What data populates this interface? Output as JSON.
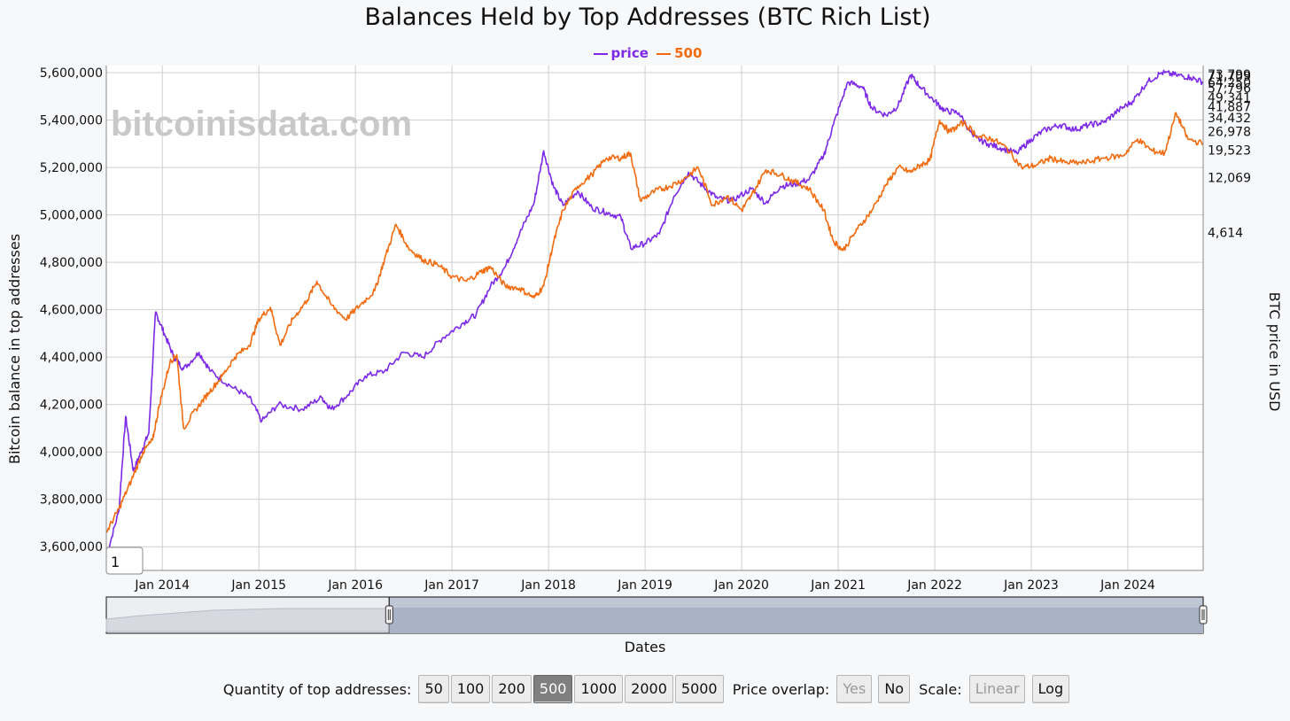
{
  "watermark": "bitcoinisdata.com",
  "chart_data": {
    "type": "line",
    "title": "Balances Held by Top Addresses (BTC Rich List)",
    "ylabel": "Bitcoin balance in top addresses",
    "y2label": "BTC price in USD",
    "xlabel": "Dates",
    "ylim": [
      3500000,
      5630000
    ],
    "y_ticks": [
      "3,600,000",
      "3,800,000",
      "4,000,000",
      "4,200,000",
      "4,400,000",
      "4,600,000",
      "4,800,000",
      "5,000,000",
      "5,200,000",
      "5,400,000",
      "5,600,000"
    ],
    "x_ticks": [
      "Jan 2014",
      "Jan 2015",
      "Jan 2016",
      "Jan 2017",
      "Jan 2018",
      "Jan 2019",
      "Jan 2020",
      "Jan 2021",
      "Jan 2022",
      "Jan 2023",
      "Jan 2024"
    ],
    "y2_ticks": [
      "73,799",
      "71,709",
      "64,250",
      "57,796",
      "49,341",
      "41,887",
      "34,432",
      "26,978",
      "19,523",
      "12,069",
      "4,614"
    ],
    "y2_tick_values": [
      73799,
      71709,
      64250,
      57796,
      49341,
      41887,
      34432,
      26978,
      19523,
      12069,
      4614
    ],
    "range_start_label": "1",
    "legend_position": "top-center",
    "grid": true,
    "series": [
      {
        "name": "price",
        "color": "#7d2ae8",
        "points": [
          [
            2013.42,
            3560000
          ],
          [
            2013.55,
            3750000
          ],
          [
            2013.62,
            4150000
          ],
          [
            2013.7,
            3920000
          ],
          [
            2013.78,
            4000000
          ],
          [
            2013.86,
            4080000
          ],
          [
            2013.93,
            4590000
          ],
          [
            2014.02,
            4500000
          ],
          [
            2014.12,
            4400000
          ],
          [
            2014.22,
            4350000
          ],
          [
            2014.38,
            4420000
          ],
          [
            2014.5,
            4340000
          ],
          [
            2014.7,
            4280000
          ],
          [
            2014.9,
            4230000
          ],
          [
            2015.03,
            4130000
          ],
          [
            2015.2,
            4200000
          ],
          [
            2015.45,
            4180000
          ],
          [
            2015.65,
            4230000
          ],
          [
            2015.75,
            4180000
          ],
          [
            2015.92,
            4240000
          ],
          [
            2016.1,
            4320000
          ],
          [
            2016.3,
            4340000
          ],
          [
            2016.5,
            4420000
          ],
          [
            2016.7,
            4400000
          ],
          [
            2016.9,
            4480000
          ],
          [
            2017.1,
            4540000
          ],
          [
            2017.25,
            4580000
          ],
          [
            2017.4,
            4700000
          ],
          [
            2017.55,
            4780000
          ],
          [
            2017.7,
            4920000
          ],
          [
            2017.85,
            5050000
          ],
          [
            2017.95,
            5270000
          ],
          [
            2018.05,
            5120000
          ],
          [
            2018.15,
            5040000
          ],
          [
            2018.3,
            5100000
          ],
          [
            2018.45,
            5030000
          ],
          [
            2018.6,
            5010000
          ],
          [
            2018.75,
            4990000
          ],
          [
            2018.85,
            4860000
          ],
          [
            2019.0,
            4880000
          ],
          [
            2019.15,
            4920000
          ],
          [
            2019.3,
            5080000
          ],
          [
            2019.45,
            5180000
          ],
          [
            2019.6,
            5120000
          ],
          [
            2019.75,
            5070000
          ],
          [
            2019.9,
            5060000
          ],
          [
            2020.1,
            5110000
          ],
          [
            2020.25,
            5050000
          ],
          [
            2020.4,
            5120000
          ],
          [
            2020.55,
            5130000
          ],
          [
            2020.7,
            5150000
          ],
          [
            2020.85,
            5250000
          ],
          [
            2020.95,
            5380000
          ],
          [
            2021.1,
            5560000
          ],
          [
            2021.25,
            5540000
          ],
          [
            2021.35,
            5450000
          ],
          [
            2021.5,
            5420000
          ],
          [
            2021.62,
            5460000
          ],
          [
            2021.75,
            5590000
          ],
          [
            2021.85,
            5540000
          ],
          [
            2022.0,
            5480000
          ],
          [
            2022.1,
            5440000
          ],
          [
            2022.25,
            5430000
          ],
          [
            2022.4,
            5330000
          ],
          [
            2022.55,
            5300000
          ],
          [
            2022.7,
            5280000
          ],
          [
            2022.85,
            5260000
          ],
          [
            2023.0,
            5320000
          ],
          [
            2023.15,
            5360000
          ],
          [
            2023.3,
            5380000
          ],
          [
            2023.45,
            5360000
          ],
          [
            2023.6,
            5380000
          ],
          [
            2023.75,
            5390000
          ],
          [
            2023.9,
            5440000
          ],
          [
            2024.05,
            5480000
          ],
          [
            2024.2,
            5560000
          ],
          [
            2024.35,
            5600000
          ],
          [
            2024.5,
            5590000
          ],
          [
            2024.65,
            5580000
          ],
          [
            2024.78,
            5560000
          ]
        ]
      },
      {
        "name": "500",
        "color": "#f26b0f",
        "points": [
          [
            2013.42,
            3660000
          ],
          [
            2013.55,
            3760000
          ],
          [
            2013.68,
            3880000
          ],
          [
            2013.8,
            4000000
          ],
          [
            2013.9,
            4050000
          ],
          [
            2013.97,
            4200000
          ],
          [
            2014.08,
            4380000
          ],
          [
            2014.15,
            4410000
          ],
          [
            2014.22,
            4100000
          ],
          [
            2014.35,
            4180000
          ],
          [
            2014.48,
            4250000
          ],
          [
            2014.62,
            4320000
          ],
          [
            2014.75,
            4400000
          ],
          [
            2014.9,
            4450000
          ],
          [
            2015.0,
            4560000
          ],
          [
            2015.12,
            4610000
          ],
          [
            2015.22,
            4450000
          ],
          [
            2015.35,
            4560000
          ],
          [
            2015.5,
            4640000
          ],
          [
            2015.6,
            4720000
          ],
          [
            2015.75,
            4620000
          ],
          [
            2015.9,
            4560000
          ],
          [
            2016.05,
            4620000
          ],
          [
            2016.2,
            4680000
          ],
          [
            2016.3,
            4810000
          ],
          [
            2016.42,
            4960000
          ],
          [
            2016.55,
            4860000
          ],
          [
            2016.7,
            4810000
          ],
          [
            2016.85,
            4790000
          ],
          [
            2017.0,
            4740000
          ],
          [
            2017.15,
            4720000
          ],
          [
            2017.3,
            4760000
          ],
          [
            2017.4,
            4780000
          ],
          [
            2017.55,
            4700000
          ],
          [
            2017.7,
            4690000
          ],
          [
            2017.85,
            4650000
          ],
          [
            2017.95,
            4700000
          ],
          [
            2018.05,
            4880000
          ],
          [
            2018.15,
            5020000
          ],
          [
            2018.3,
            5120000
          ],
          [
            2018.45,
            5170000
          ],
          [
            2018.6,
            5240000
          ],
          [
            2018.75,
            5240000
          ],
          [
            2018.85,
            5260000
          ],
          [
            2018.95,
            5060000
          ],
          [
            2019.1,
            5100000
          ],
          [
            2019.25,
            5120000
          ],
          [
            2019.4,
            5150000
          ],
          [
            2019.55,
            5200000
          ],
          [
            2019.7,
            5040000
          ],
          [
            2019.85,
            5080000
          ],
          [
            2020.0,
            5020000
          ],
          [
            2020.1,
            5080000
          ],
          [
            2020.25,
            5190000
          ],
          [
            2020.4,
            5170000
          ],
          [
            2020.55,
            5140000
          ],
          [
            2020.7,
            5110000
          ],
          [
            2020.85,
            5020000
          ],
          [
            2020.95,
            4890000
          ],
          [
            2021.05,
            4850000
          ],
          [
            2021.2,
            4940000
          ],
          [
            2021.35,
            5020000
          ],
          [
            2021.5,
            5130000
          ],
          [
            2021.62,
            5200000
          ],
          [
            2021.75,
            5180000
          ],
          [
            2021.85,
            5210000
          ],
          [
            2021.95,
            5230000
          ],
          [
            2022.05,
            5400000
          ],
          [
            2022.15,
            5350000
          ],
          [
            2022.3,
            5390000
          ],
          [
            2022.45,
            5330000
          ],
          [
            2022.6,
            5320000
          ],
          [
            2022.75,
            5280000
          ],
          [
            2022.9,
            5200000
          ],
          [
            2023.05,
            5210000
          ],
          [
            2023.2,
            5240000
          ],
          [
            2023.35,
            5220000
          ],
          [
            2023.55,
            5220000
          ],
          [
            2023.75,
            5240000
          ],
          [
            2023.95,
            5250000
          ],
          [
            2024.1,
            5320000
          ],
          [
            2024.25,
            5270000
          ],
          [
            2024.38,
            5260000
          ],
          [
            2024.5,
            5430000
          ],
          [
            2024.62,
            5320000
          ],
          [
            2024.78,
            5300000
          ]
        ]
      }
    ]
  },
  "navigator": {
    "start_year": 2013.42,
    "end_year": 2024.78,
    "selection_start": 2016.35
  },
  "controls": {
    "quantity_label": "Quantity of top addresses:",
    "quantity_options": [
      "50",
      "100",
      "200",
      "500",
      "1000",
      "2000",
      "5000"
    ],
    "quantity_selected": "500",
    "overlap_label": "Price overlap:",
    "overlap_yes": "Yes",
    "overlap_no": "No",
    "scale_label": "Scale:",
    "scale_linear": "Linear",
    "scale_log": "Log"
  }
}
